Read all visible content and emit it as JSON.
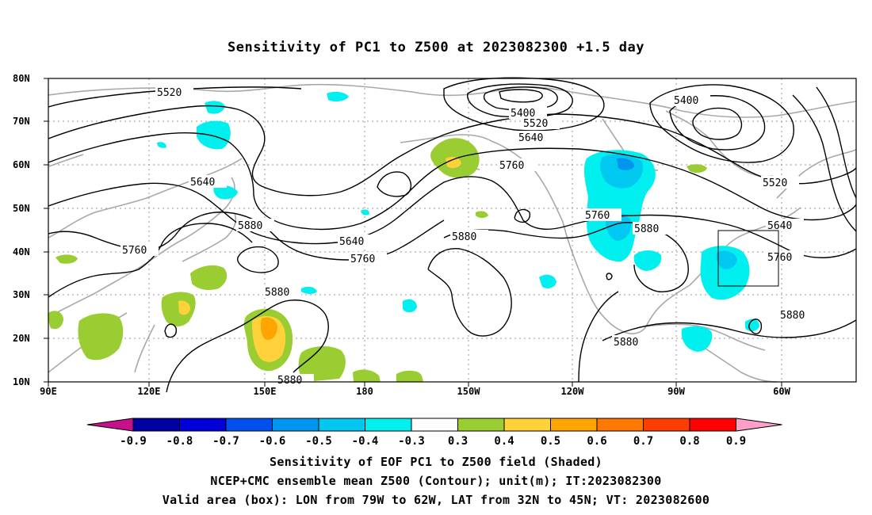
{
  "title": "Sensitivity of PC1 to Z500 at 2023082300 +1.5 day",
  "axes": {
    "lat_ticks": [
      "10N",
      "20N",
      "30N",
      "40N",
      "50N",
      "60N",
      "70N",
      "80N"
    ],
    "lon_ticks": [
      "90E",
      "120E",
      "150E",
      "180",
      "150W",
      "120W",
      "90W",
      "60W"
    ]
  },
  "contour_labels": [
    "5520",
    "5640",
    "5760",
    "5880",
    "5400",
    "5400",
    "5520",
    "5640",
    "5760",
    "5520",
    "5640",
    "5760",
    "5880",
    "5880",
    "5880",
    "5880",
    "5880",
    "5760",
    "5640"
  ],
  "colorbar": {
    "labels": [
      "-0.9",
      "-0.8",
      "-0.7",
      "-0.6",
      "-0.5",
      "-0.4",
      "-0.3",
      "0.3",
      "0.4",
      "0.5",
      "0.6",
      "0.7",
      "0.8",
      "0.9"
    ],
    "colors": [
      "#0000a0",
      "#0000d8",
      "#0050f0",
      "#0096f0",
      "#00c8f0",
      "#00f0f0",
      "#ffffff",
      "#9acd32",
      "#ffd23c",
      "#ffa500",
      "#ff7800",
      "#ff3c00",
      "#ff0000"
    ],
    "low_end_color": "#c8108c",
    "high_end_color": "#ffa0c8"
  },
  "captions": {
    "line1": "Sensitivity of EOF PC1 to Z500 field (Shaded)",
    "line2": "NCEP+CMC ensemble mean Z500 (Contour); unit(m); IT:2023082300",
    "line3": "Valid area (box): LON from 79W to 62W, LAT from 32N to 45N; VT: 2023082600"
  }
}
